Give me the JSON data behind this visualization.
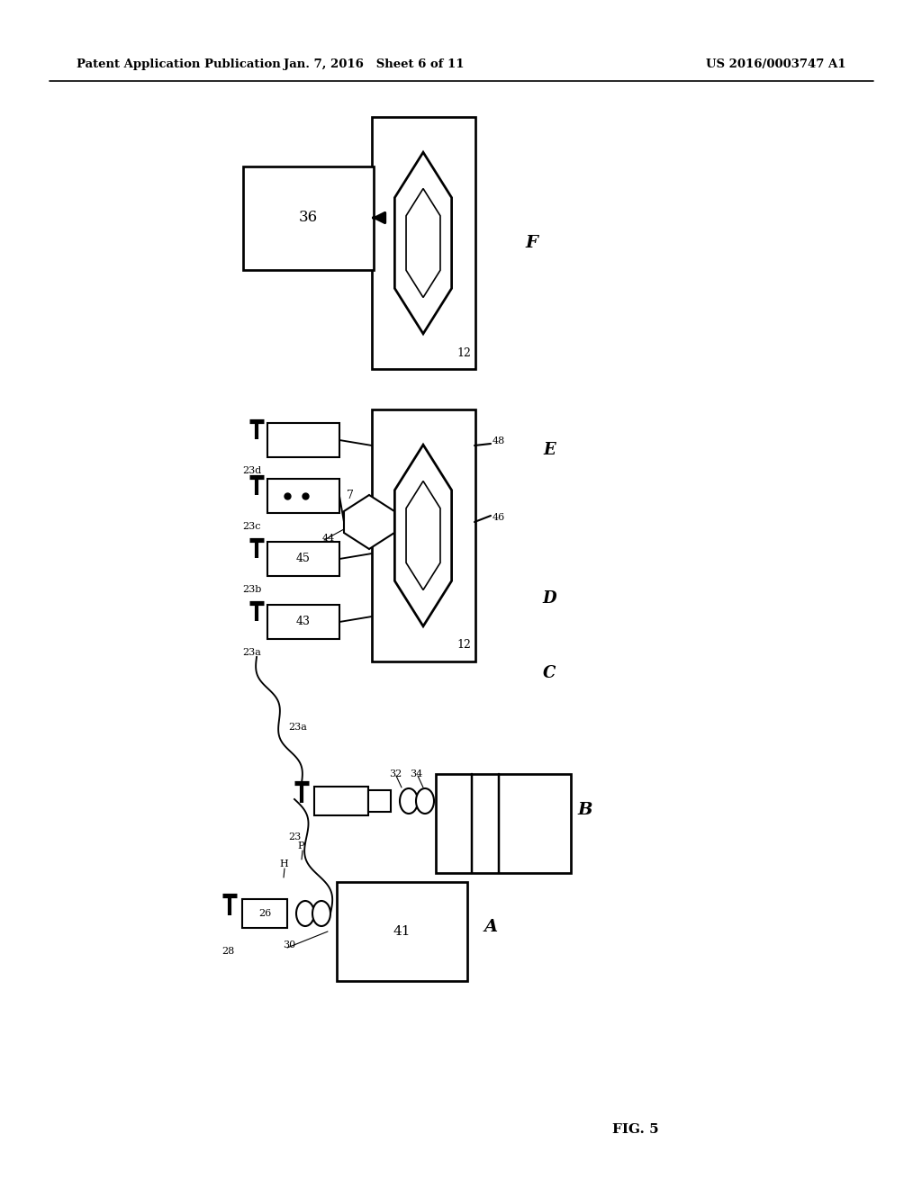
{
  "header_left": "Patent Application Publication",
  "header_mid": "Jan. 7, 2016   Sheet 6 of 11",
  "header_right": "US 2016/0003747 A1",
  "fig_label": "FIG. 5",
  "bg": "#ffffff",
  "lc": "#000000"
}
